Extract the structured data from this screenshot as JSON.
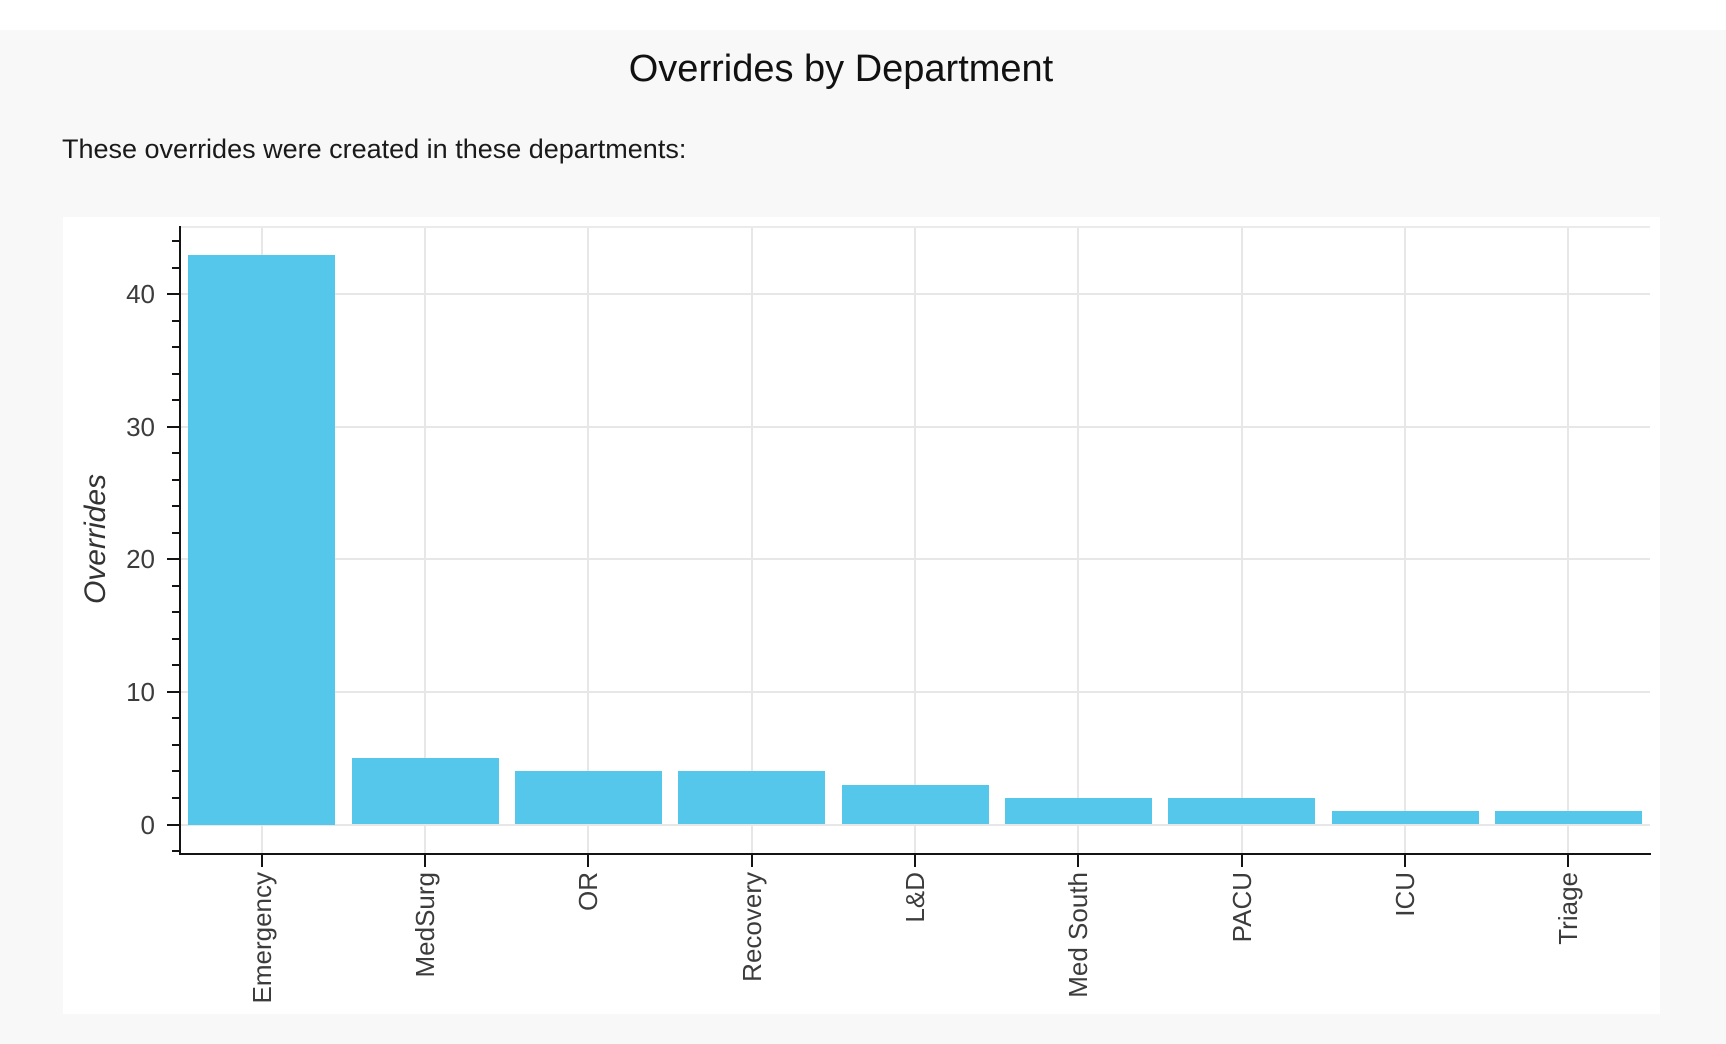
{
  "page": {
    "title": "Overrides by Department",
    "subtitle": "These overrides were created in these departments:"
  },
  "chart_data": {
    "type": "bar",
    "title": "Overrides by Department",
    "subtitle": "These overrides were created in these departments:",
    "categories": [
      "Emergency",
      "MedSurg",
      "OR",
      "Recovery",
      "L&D",
      "Med South",
      "PACU",
      "ICU",
      "Triage"
    ],
    "values": [
      43,
      5,
      4,
      4,
      3,
      2,
      2,
      1,
      1
    ],
    "xlabel": "",
    "ylabel": "Overrides",
    "ylim": [
      -2.15,
      45.15
    ],
    "yticks_major": [
      0,
      10,
      20,
      30,
      40
    ],
    "ytick_minor_step": 2,
    "bar_width_frac": 0.9,
    "bar_color": "#55c7eb",
    "grid": "both",
    "legend": "none",
    "x_tick_label_rotation_deg": 90
  }
}
